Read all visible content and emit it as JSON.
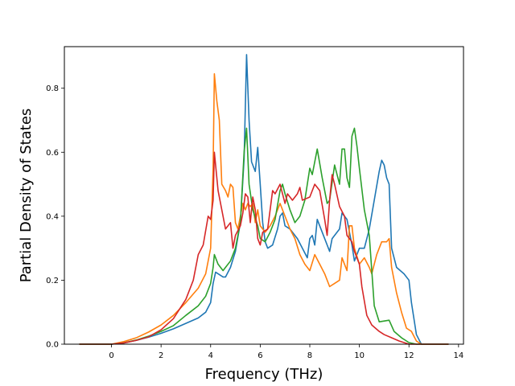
{
  "chart_data": {
    "type": "line",
    "title": "",
    "xlabel": "Frequency (THz)",
    "ylabel": "Partial Density of States",
    "xlim": [
      -1.9,
      14.2
    ],
    "ylim": [
      0,
      0.93
    ],
    "xticks": [
      0,
      2,
      4,
      6,
      8,
      10,
      12,
      14
    ],
    "xtick_labels": [
      "0",
      "2",
      "4",
      "6",
      "8",
      "10",
      "12",
      "14"
    ],
    "yticks": [
      0.0,
      0.2,
      0.4,
      0.6,
      0.8
    ],
    "ytick_labels": [
      "0.0",
      "0.2",
      "0.4",
      "0.6",
      "0.8"
    ],
    "grid": false,
    "legend": "none",
    "series": [
      {
        "color": "#1f77b4",
        "points": [
          [
            -1.3,
            0
          ],
          [
            0,
            0
          ],
          [
            0.5,
            0.004
          ],
          [
            1,
            0.012
          ],
          [
            1.5,
            0.022
          ],
          [
            2,
            0.034
          ],
          [
            2.5,
            0.048
          ],
          [
            3,
            0.065
          ],
          [
            3.5,
            0.082
          ],
          [
            3.8,
            0.1
          ],
          [
            4.0,
            0.13
          ],
          [
            4.1,
            0.19
          ],
          [
            4.2,
            0.225
          ],
          [
            4.3,
            0.22
          ],
          [
            4.5,
            0.21
          ],
          [
            4.6,
            0.21
          ],
          [
            4.8,
            0.24
          ],
          [
            5.0,
            0.29
          ],
          [
            5.2,
            0.38
          ],
          [
            5.35,
            0.58
          ],
          [
            5.45,
            0.905
          ],
          [
            5.55,
            0.7
          ],
          [
            5.65,
            0.57
          ],
          [
            5.8,
            0.54
          ],
          [
            5.9,
            0.615
          ],
          [
            6.0,
            0.5
          ],
          [
            6.1,
            0.38
          ],
          [
            6.2,
            0.32
          ],
          [
            6.3,
            0.3
          ],
          [
            6.5,
            0.31
          ],
          [
            6.7,
            0.36
          ],
          [
            6.8,
            0.4
          ],
          [
            6.9,
            0.41
          ],
          [
            7.0,
            0.37
          ],
          [
            7.2,
            0.36
          ],
          [
            7.5,
            0.33
          ],
          [
            7.7,
            0.3
          ],
          [
            7.9,
            0.27
          ],
          [
            8.0,
            0.33
          ],
          [
            8.1,
            0.34
          ],
          [
            8.2,
            0.31
          ],
          [
            8.3,
            0.39
          ],
          [
            8.4,
            0.37
          ],
          [
            8.6,
            0.33
          ],
          [
            8.8,
            0.29
          ],
          [
            8.9,
            0.33
          ],
          [
            9.0,
            0.34
          ],
          [
            9.2,
            0.36
          ],
          [
            9.3,
            0.41
          ],
          [
            9.5,
            0.39
          ],
          [
            9.7,
            0.31
          ],
          [
            9.8,
            0.26
          ],
          [
            10.0,
            0.3
          ],
          [
            10.2,
            0.3
          ],
          [
            10.4,
            0.36
          ],
          [
            10.6,
            0.45
          ],
          [
            10.8,
            0.54
          ],
          [
            10.9,
            0.575
          ],
          [
            11.0,
            0.56
          ],
          [
            11.1,
            0.52
          ],
          [
            11.2,
            0.5
          ],
          [
            11.3,
            0.3
          ],
          [
            11.5,
            0.24
          ],
          [
            11.8,
            0.22
          ],
          [
            12.0,
            0.2
          ],
          [
            12.1,
            0.13
          ],
          [
            12.3,
            0.03
          ],
          [
            12.5,
            0
          ],
          [
            13.6,
            0
          ]
        ]
      },
      {
        "color": "#ff7f0e",
        "points": [
          [
            -1.3,
            0
          ],
          [
            0,
            0
          ],
          [
            0.5,
            0.008
          ],
          [
            1,
            0.02
          ],
          [
            1.5,
            0.038
          ],
          [
            2,
            0.06
          ],
          [
            2.5,
            0.09
          ],
          [
            3,
            0.13
          ],
          [
            3.5,
            0.175
          ],
          [
            3.8,
            0.22
          ],
          [
            4.0,
            0.3
          ],
          [
            4.1,
            0.55
          ],
          [
            4.15,
            0.845
          ],
          [
            4.25,
            0.76
          ],
          [
            4.35,
            0.7
          ],
          [
            4.45,
            0.5
          ],
          [
            4.6,
            0.48
          ],
          [
            4.7,
            0.46
          ],
          [
            4.8,
            0.5
          ],
          [
            4.9,
            0.49
          ],
          [
            5.0,
            0.38
          ],
          [
            5.1,
            0.36
          ],
          [
            5.2,
            0.4
          ],
          [
            5.3,
            0.44
          ],
          [
            5.4,
            0.42
          ],
          [
            5.5,
            0.44
          ],
          [
            5.6,
            0.43
          ],
          [
            5.7,
            0.44
          ],
          [
            5.8,
            0.38
          ],
          [
            5.9,
            0.42
          ],
          [
            6.0,
            0.37
          ],
          [
            6.2,
            0.35
          ],
          [
            6.4,
            0.37
          ],
          [
            6.6,
            0.4
          ],
          [
            6.8,
            0.44
          ],
          [
            7.0,
            0.4
          ],
          [
            7.2,
            0.36
          ],
          [
            7.4,
            0.33
          ],
          [
            7.6,
            0.28
          ],
          [
            7.8,
            0.25
          ],
          [
            8.0,
            0.23
          ],
          [
            8.2,
            0.28
          ],
          [
            8.4,
            0.25
          ],
          [
            8.6,
            0.22
          ],
          [
            8.8,
            0.18
          ],
          [
            9.0,
            0.19
          ],
          [
            9.2,
            0.2
          ],
          [
            9.3,
            0.27
          ],
          [
            9.5,
            0.23
          ],
          [
            9.6,
            0.37
          ],
          [
            9.7,
            0.37
          ],
          [
            9.8,
            0.3
          ],
          [
            10.0,
            0.25
          ],
          [
            10.2,
            0.27
          ],
          [
            10.4,
            0.24
          ],
          [
            10.5,
            0.22
          ],
          [
            10.7,
            0.28
          ],
          [
            10.9,
            0.32
          ],
          [
            11.1,
            0.32
          ],
          [
            11.2,
            0.33
          ],
          [
            11.3,
            0.24
          ],
          [
            11.5,
            0.16
          ],
          [
            11.7,
            0.1
          ],
          [
            11.9,
            0.05
          ],
          [
            12.1,
            0.04
          ],
          [
            12.3,
            0.01
          ],
          [
            12.5,
            0
          ],
          [
            13.6,
            0
          ]
        ]
      },
      {
        "color": "#2ca02c",
        "points": [
          [
            -1.3,
            0
          ],
          [
            0,
            0
          ],
          [
            0.5,
            0.004
          ],
          [
            1,
            0.013
          ],
          [
            1.5,
            0.025
          ],
          [
            2,
            0.04
          ],
          [
            2.5,
            0.058
          ],
          [
            3,
            0.09
          ],
          [
            3.5,
            0.12
          ],
          [
            3.8,
            0.15
          ],
          [
            4.0,
            0.19
          ],
          [
            4.1,
            0.24
          ],
          [
            4.15,
            0.28
          ],
          [
            4.3,
            0.25
          ],
          [
            4.5,
            0.23
          ],
          [
            4.6,
            0.24
          ],
          [
            4.8,
            0.26
          ],
          [
            5.0,
            0.3
          ],
          [
            5.2,
            0.38
          ],
          [
            5.35,
            0.6
          ],
          [
            5.45,
            0.675
          ],
          [
            5.55,
            0.5
          ],
          [
            5.7,
            0.42
          ],
          [
            5.9,
            0.37
          ],
          [
            6.0,
            0.33
          ],
          [
            6.2,
            0.32
          ],
          [
            6.4,
            0.35
          ],
          [
            6.6,
            0.39
          ],
          [
            6.8,
            0.48
          ],
          [
            6.9,
            0.5
          ],
          [
            7.0,
            0.47
          ],
          [
            7.2,
            0.42
          ],
          [
            7.4,
            0.38
          ],
          [
            7.6,
            0.4
          ],
          [
            7.8,
            0.45
          ],
          [
            8.0,
            0.55
          ],
          [
            8.1,
            0.53
          ],
          [
            8.3,
            0.61
          ],
          [
            8.5,
            0.52
          ],
          [
            8.7,
            0.44
          ],
          [
            8.8,
            0.45
          ],
          [
            9.0,
            0.56
          ],
          [
            9.2,
            0.5
          ],
          [
            9.3,
            0.61
          ],
          [
            9.4,
            0.61
          ],
          [
            9.5,
            0.52
          ],
          [
            9.6,
            0.49
          ],
          [
            9.7,
            0.65
          ],
          [
            9.8,
            0.675
          ],
          [
            9.9,
            0.62
          ],
          [
            10.0,
            0.55
          ],
          [
            10.2,
            0.42
          ],
          [
            10.4,
            0.34
          ],
          [
            10.6,
            0.12
          ],
          [
            10.8,
            0.07
          ],
          [
            11.2,
            0.075
          ],
          [
            11.4,
            0.04
          ],
          [
            11.7,
            0.02
          ],
          [
            12.0,
            0.005
          ],
          [
            12.3,
            0
          ],
          [
            13.6,
            0
          ]
        ]
      },
      {
        "color": "#d62728",
        "points": [
          [
            -1.3,
            0
          ],
          [
            0,
            0
          ],
          [
            0.5,
            0.004
          ],
          [
            1,
            0.012
          ],
          [
            1.5,
            0.023
          ],
          [
            2,
            0.045
          ],
          [
            2.5,
            0.08
          ],
          [
            3,
            0.14
          ],
          [
            3.3,
            0.2
          ],
          [
            3.5,
            0.28
          ],
          [
            3.7,
            0.31
          ],
          [
            3.9,
            0.4
          ],
          [
            4.0,
            0.39
          ],
          [
            4.1,
            0.45
          ],
          [
            4.15,
            0.6
          ],
          [
            4.3,
            0.48
          ],
          [
            4.4,
            0.44
          ],
          [
            4.6,
            0.36
          ],
          [
            4.8,
            0.38
          ],
          [
            4.9,
            0.3
          ],
          [
            5.0,
            0.34
          ],
          [
            5.2,
            0.37
          ],
          [
            5.3,
            0.41
          ],
          [
            5.4,
            0.47
          ],
          [
            5.5,
            0.46
          ],
          [
            5.6,
            0.38
          ],
          [
            5.7,
            0.46
          ],
          [
            5.8,
            0.42
          ],
          [
            5.9,
            0.33
          ],
          [
            6.0,
            0.31
          ],
          [
            6.1,
            0.35
          ],
          [
            6.3,
            0.36
          ],
          [
            6.5,
            0.48
          ],
          [
            6.6,
            0.47
          ],
          [
            6.8,
            0.5
          ],
          [
            7.0,
            0.44
          ],
          [
            7.1,
            0.47
          ],
          [
            7.3,
            0.45
          ],
          [
            7.5,
            0.47
          ],
          [
            7.6,
            0.49
          ],
          [
            7.7,
            0.45
          ],
          [
            8.0,
            0.46
          ],
          [
            8.2,
            0.5
          ],
          [
            8.4,
            0.48
          ],
          [
            8.6,
            0.39
          ],
          [
            8.7,
            0.34
          ],
          [
            8.8,
            0.45
          ],
          [
            8.9,
            0.53
          ],
          [
            9.0,
            0.5
          ],
          [
            9.2,
            0.43
          ],
          [
            9.4,
            0.4
          ],
          [
            9.5,
            0.34
          ],
          [
            9.7,
            0.32
          ],
          [
            9.8,
            0.29
          ],
          [
            10.0,
            0.25
          ],
          [
            10.1,
            0.18
          ],
          [
            10.3,
            0.09
          ],
          [
            10.5,
            0.06
          ],
          [
            10.8,
            0.04
          ],
          [
            11.0,
            0.03
          ],
          [
            11.3,
            0.02
          ],
          [
            11.6,
            0.01
          ],
          [
            12.0,
            0
          ],
          [
            13.6,
            0
          ]
        ]
      }
    ]
  }
}
